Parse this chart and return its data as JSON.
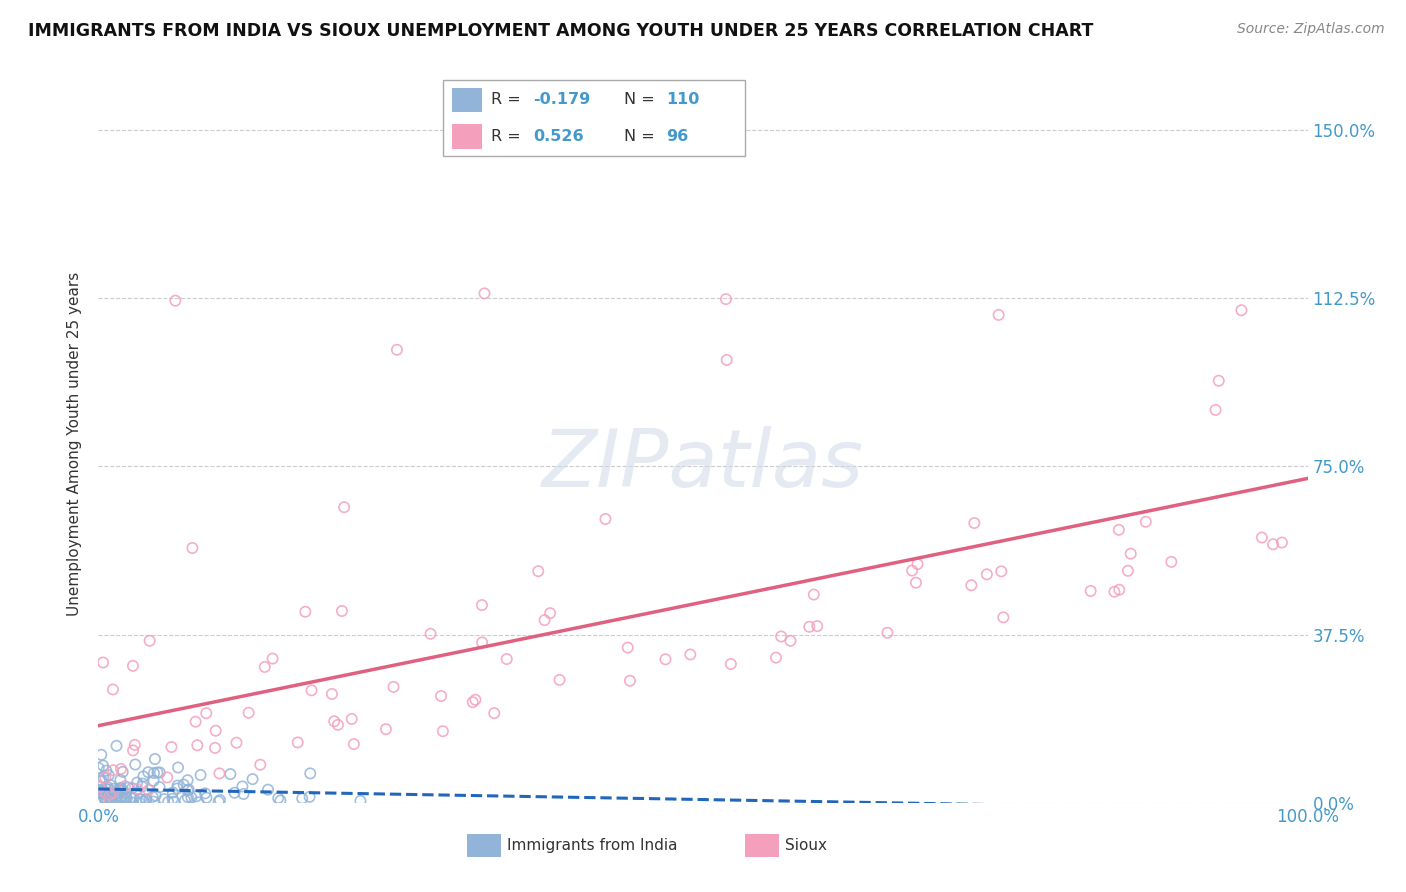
{
  "title": "IMMIGRANTS FROM INDIA VS SIOUX UNEMPLOYMENT AMONG YOUTH UNDER 25 YEARS CORRELATION CHART",
  "source": "Source: ZipAtlas.com",
  "ylabel": "Unemployment Among Youth under 25 years",
  "legend_india": {
    "R": "-0.179",
    "N": "110",
    "label": "Immigrants from India"
  },
  "legend_sioux": {
    "R": "0.526",
    "N": "96",
    "label": "Sioux"
  },
  "india_color": "#92b4d8",
  "sioux_color": "#f4a0bc",
  "india_line_color": "#2266bb",
  "sioux_line_color": "#e06080",
  "ytick_vals": [
    0.0,
    37.5,
    75.0,
    112.5,
    150.0
  ],
  "xlim": [
    0.0,
    100.0
  ],
  "ylim": [
    0.0,
    160.0
  ],
  "tick_color": "#4499cc",
  "india_seed": 42,
  "sioux_seed": 99
}
